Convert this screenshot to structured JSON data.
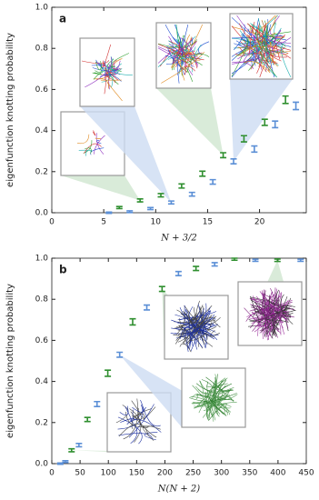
{
  "chart_data": [
    {
      "type": "scatter",
      "panel_label": "a",
      "xlabel": "N + 3/2",
      "ylabel": "eigenfunction knotting probability",
      "xlim": [
        0,
        24.5
      ],
      "ylim": [
        0,
        1
      ],
      "xticks": [
        0,
        5,
        10,
        15,
        20
      ],
      "yticks": [
        {
          "value": 0,
          "label": "0.0"
        },
        {
          "value": 0.2,
          "label": "0.2"
        },
        {
          "value": 0.4,
          "label": "0.4"
        },
        {
          "value": 0.6,
          "label": "0.6"
        },
        {
          "value": 0.8,
          "label": "0.8"
        },
        {
          "value": 1,
          "label": "1.0"
        }
      ],
      "series": [
        {
          "color": "#2f8f2f",
          "x": [
            6.5,
            8.5,
            10.5,
            12.5,
            14.5,
            16.5,
            18.5,
            20.5,
            22.5
          ],
          "values": [
            0.025,
            0.06,
            0.085,
            0.13,
            0.19,
            0.28,
            0.36,
            0.44,
            0.55
          ],
          "errors": [
            0.005,
            0.007,
            0.008,
            0.01,
            0.012,
            0.012,
            0.015,
            0.015,
            0.018
          ]
        },
        {
          "color": "#5b8fd6",
          "x": [
            5.5,
            7.5,
            9.5,
            11.5,
            13.5,
            15.5,
            17.5,
            19.5,
            21.5,
            23.5
          ],
          "values": [
            0.0,
            0.005,
            0.02,
            0.05,
            0.09,
            0.15,
            0.25,
            0.31,
            0.43,
            0.52
          ],
          "errors": [
            0.003,
            0.004,
            0.005,
            0.007,
            0.009,
            0.011,
            0.012,
            0.015,
            0.016,
            0.018
          ]
        }
      ]
    },
    {
      "type": "scatter",
      "panel_label": "b",
      "xlabel": "N(N + 2)",
      "ylabel": "eigenfunction knotting probability",
      "xlim": [
        0,
        450
      ],
      "ylim": [
        0,
        1
      ],
      "xticks": [
        0,
        50,
        100,
        150,
        200,
        250,
        300,
        350,
        400,
        450
      ],
      "yticks": [
        {
          "value": 0,
          "label": "0.0"
        },
        {
          "value": 0.2,
          "label": "0.2"
        },
        {
          "value": 0.4,
          "label": "0.4"
        },
        {
          "value": 0.6,
          "label": "0.6"
        },
        {
          "value": 0.8,
          "label": "0.8"
        },
        {
          "value": 1,
          "label": "1.0"
        }
      ],
      "series": [
        {
          "color": "#2f8f2f",
          "x": [
            35,
            63,
            99,
            143,
            195,
            255,
            323,
            399
          ],
          "values": [
            0.065,
            0.215,
            0.44,
            0.69,
            0.85,
            0.95,
            0.995,
            0.99
          ],
          "errors": [
            0.007,
            0.01,
            0.015,
            0.015,
            0.012,
            0.01,
            0.005,
            0.006
          ]
        },
        {
          "color": "#5b8fd6",
          "x": [
            15,
            24,
            48,
            80,
            120,
            168,
            224,
            288,
            360,
            440
          ],
          "values": [
            0.0,
            0.01,
            0.09,
            0.29,
            0.53,
            0.76,
            0.925,
            0.97,
            0.99,
            0.99
          ],
          "errors": [
            0.003,
            0.004,
            0.008,
            0.012,
            0.012,
            0.012,
            0.01,
            0.008,
            0.005,
            0.005
          ]
        }
      ]
    }
  ]
}
